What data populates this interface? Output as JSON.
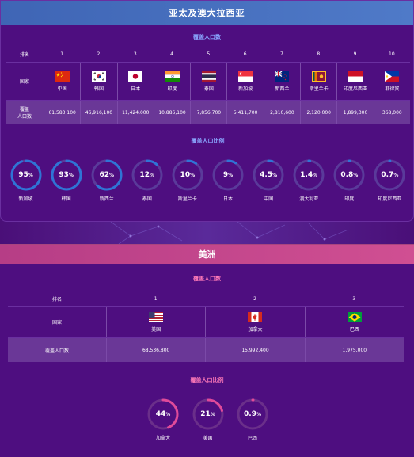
{
  "asia": {
    "title": "亚太及澳大拉西亚",
    "table_title": "覆盖人口数",
    "rank_label": "排名",
    "country_label": "国家",
    "pop_label_1": "覆盖",
    "pop_label_2": "人口数",
    "countries": [
      {
        "rank": "1",
        "name": "中国",
        "pop": "61,583,100"
      },
      {
        "rank": "2",
        "name": "韩国",
        "pop": "46,916,100"
      },
      {
        "rank": "3",
        "name": "日本",
        "pop": "11,424,000"
      },
      {
        "rank": "4",
        "name": "印度",
        "pop": "10,886,100"
      },
      {
        "rank": "5",
        "name": "泰国",
        "pop": "7,856,700"
      },
      {
        "rank": "6",
        "name": "新加坡",
        "pop": "5,411,700"
      },
      {
        "rank": "7",
        "name": "新西兰",
        "pop": "2,810,600"
      },
      {
        "rank": "8",
        "name": "斯里兰卡",
        "pop": "2,120,000"
      },
      {
        "rank": "9",
        "name": "印度尼西亚",
        "pop": "1,899,300"
      },
      {
        "rank": "10",
        "name": "菲律宾",
        "pop": "368,000"
      }
    ],
    "ratio_title": "覆盖人口比例",
    "ratios": [
      {
        "value": "95",
        "pct": 95,
        "name": "新加坡"
      },
      {
        "value": "93",
        "pct": 93,
        "name": "韩国"
      },
      {
        "value": "62",
        "pct": 62,
        "name": "新西兰"
      },
      {
        "value": "12",
        "pct": 12,
        "name": "泰国"
      },
      {
        "value": "10",
        "pct": 10,
        "name": "斯里兰卡"
      },
      {
        "value": "9",
        "pct": 9,
        "name": "日本"
      },
      {
        "value": "4.5",
        "pct": 4.5,
        "name": "中国"
      },
      {
        "value": "1.4",
        "pct": 1.4,
        "name": "澳大利亚"
      },
      {
        "value": "0.8",
        "pct": 0.8,
        "name": "印度"
      },
      {
        "value": "0.7",
        "pct": 0.7,
        "name": "印度尼西亚"
      }
    ]
  },
  "americas": {
    "title": "美洲",
    "table_title": "覆盖人口数",
    "rank_label": "排名",
    "country_label": "国家",
    "pop_label": "覆盖人口数",
    "countries": [
      {
        "rank": "1",
        "name": "美国",
        "pop": "68,536,800"
      },
      {
        "rank": "2",
        "name": "加拿大",
        "pop": "15,992,400"
      },
      {
        "rank": "3",
        "name": "巴西",
        "pop": "1,975,000"
      }
    ],
    "ratio_title": "覆盖人口比例",
    "ratios": [
      {
        "value": "44",
        "pct": 44,
        "name": "加拿大"
      },
      {
        "value": "21",
        "pct": 21,
        "name": "美国"
      },
      {
        "value": "0.9",
        "pct": 0.9,
        "name": "巴西"
      }
    ]
  },
  "percent_sign": "%",
  "colors": {
    "asia_ring": "#2f74d6",
    "asia_track": "#5a3a9a",
    "americas_ring": "#e04a9a",
    "americas_track": "#6a2f8a"
  }
}
